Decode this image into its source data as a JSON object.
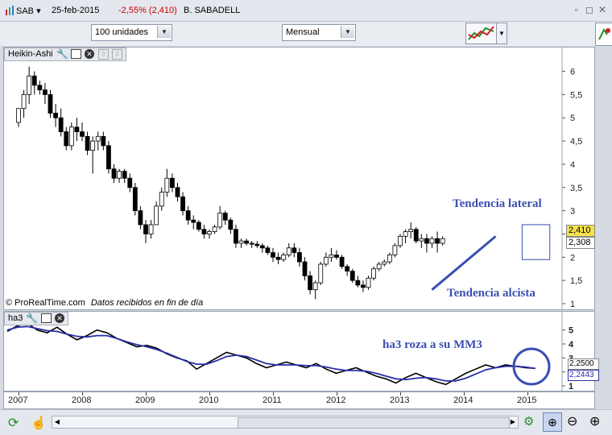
{
  "header": {
    "symbol": "SAB",
    "date": "25-feb-2015",
    "change": "-2,55% (2,410)",
    "instrument": "B. SABADELL",
    "change_color": "#cc0000"
  },
  "toolbar": {
    "units_value": "100 unidades",
    "period_value": "Mensual"
  },
  "price_panel": {
    "indicator_label": "Heikin-Ashi",
    "y_ticks": [
      "6",
      "5,5",
      "5",
      "4,5",
      "4",
      "3,5",
      "3",
      "2,5",
      "2",
      "1,5",
      "1"
    ],
    "last_price": "2,410",
    "ma_price": "2,308",
    "last_price_color": "#f6e24a",
    "footer_source": "© ProRealTime.com",
    "footer_note": "Datos recibidos en fin de día",
    "annotation_lateral": "Tendencia lateral",
    "annotation_alcista": "Tendencia alcista",
    "annotation_color": "#3a4fb0"
  },
  "osc_panel": {
    "indicator_label": "ha3",
    "y_ticks": [
      "5",
      "4",
      "3",
      "2",
      "1"
    ],
    "value_ha3": "2,2500",
    "value_mm3": "2,2443",
    "annotation": "ha3 roza a su MM3",
    "series_colors": {
      "ha3": "#000000",
      "mm3": "#2a2fa8"
    }
  },
  "x_axis": {
    "years": [
      "2007",
      "2008",
      "2009",
      "2010",
      "2011",
      "2012",
      "2013",
      "2014",
      "2015"
    ]
  },
  "chart_data": {
    "type": "candlestick",
    "xlabel": "",
    "ylabel": "",
    "ylim": [
      1,
      6.2
    ],
    "x_start": "2007-01",
    "frequency": "monthly",
    "candles": [
      [
        4.9,
        5.2,
        4.8,
        5.2
      ],
      [
        5.2,
        5.6,
        5.0,
        5.5
      ],
      [
        5.5,
        6.1,
        5.3,
        5.9
      ],
      [
        5.9,
        6.0,
        5.5,
        5.7
      ],
      [
        5.7,
        5.8,
        5.5,
        5.6
      ],
      [
        5.6,
        5.75,
        5.3,
        5.5
      ],
      [
        5.5,
        5.6,
        5.0,
        5.1
      ],
      [
        5.1,
        5.3,
        4.8,
        5.0
      ],
      [
        5.0,
        5.2,
        4.6,
        4.7
      ],
      [
        4.7,
        4.8,
        4.3,
        4.4
      ],
      [
        4.4,
        4.9,
        4.3,
        4.8
      ],
      [
        4.8,
        5.0,
        4.5,
        4.7
      ],
      [
        4.7,
        4.9,
        4.5,
        4.6
      ],
      [
        4.6,
        4.7,
        4.2,
        4.3
      ],
      [
        4.3,
        4.6,
        3.8,
        4.5
      ],
      [
        4.5,
        4.7,
        4.3,
        4.6
      ],
      [
        4.6,
        4.7,
        4.3,
        4.4
      ],
      [
        4.4,
        4.5,
        3.8,
        3.9
      ],
      [
        3.9,
        4.0,
        3.6,
        3.7
      ],
      [
        3.7,
        3.9,
        3.6,
        3.85
      ],
      [
        3.85,
        3.9,
        3.6,
        3.7
      ],
      [
        3.7,
        3.8,
        3.4,
        3.5
      ],
      [
        3.5,
        3.6,
        2.9,
        3.0
      ],
      [
        3.0,
        3.1,
        2.6,
        2.7
      ],
      [
        2.7,
        2.8,
        2.3,
        2.5
      ],
      [
        2.5,
        2.8,
        2.4,
        2.7
      ],
      [
        2.7,
        3.2,
        2.7,
        3.1
      ],
      [
        3.1,
        3.5,
        3.0,
        3.4
      ],
      [
        3.4,
        3.9,
        3.3,
        3.7
      ],
      [
        3.7,
        3.8,
        3.4,
        3.5
      ],
      [
        3.5,
        3.6,
        3.2,
        3.3
      ],
      [
        3.3,
        3.4,
        2.9,
        3.0
      ],
      [
        3.0,
        3.1,
        2.7,
        2.8
      ],
      [
        2.8,
        2.9,
        2.6,
        2.75
      ],
      [
        2.75,
        2.8,
        2.55,
        2.6
      ],
      [
        2.6,
        2.7,
        2.4,
        2.5
      ],
      [
        2.5,
        2.6,
        2.4,
        2.55
      ],
      [
        2.55,
        2.7,
        2.5,
        2.65
      ],
      [
        2.65,
        3.1,
        2.6,
        2.95
      ],
      [
        2.95,
        3.0,
        2.7,
        2.8
      ],
      [
        2.8,
        2.85,
        2.5,
        2.6
      ],
      [
        2.6,
        2.7,
        2.2,
        2.3
      ],
      [
        2.3,
        2.4,
        2.2,
        2.35
      ],
      [
        2.35,
        2.4,
        2.25,
        2.3
      ],
      [
        2.3,
        2.35,
        2.2,
        2.28
      ],
      [
        2.28,
        2.35,
        2.2,
        2.25
      ],
      [
        2.25,
        2.3,
        2.1,
        2.2
      ],
      [
        2.2,
        2.25,
        2.05,
        2.1
      ],
      [
        2.1,
        2.2,
        1.9,
        2.0
      ],
      [
        2.0,
        2.1,
        1.85,
        1.95
      ],
      [
        1.95,
        2.1,
        1.9,
        2.05
      ],
      [
        2.05,
        2.3,
        2.0,
        2.2
      ],
      [
        2.2,
        2.3,
        2.0,
        2.1
      ],
      [
        2.1,
        2.2,
        1.8,
        1.9
      ],
      [
        1.9,
        2.0,
        1.5,
        1.6
      ],
      [
        1.6,
        1.7,
        1.2,
        1.3
      ],
      [
        1.3,
        1.5,
        1.1,
        1.45
      ],
      [
        1.45,
        1.9,
        1.4,
        1.85
      ],
      [
        1.85,
        2.1,
        1.8,
        2.0
      ],
      [
        2.0,
        2.2,
        1.9,
        2.05
      ],
      [
        2.05,
        2.15,
        1.95,
        2.0
      ],
      [
        2.0,
        2.05,
        1.75,
        1.8
      ],
      [
        1.8,
        1.85,
        1.6,
        1.7
      ],
      [
        1.7,
        1.75,
        1.45,
        1.5
      ],
      [
        1.5,
        1.6,
        1.35,
        1.4
      ],
      [
        1.4,
        1.5,
        1.25,
        1.35
      ],
      [
        1.35,
        1.6,
        1.3,
        1.55
      ],
      [
        1.55,
        1.8,
        1.5,
        1.75
      ],
      [
        1.75,
        1.9,
        1.7,
        1.85
      ],
      [
        1.85,
        1.95,
        1.8,
        1.9
      ],
      [
        1.9,
        2.1,
        1.85,
        2.05
      ],
      [
        2.05,
        2.3,
        2.0,
        2.25
      ],
      [
        2.25,
        2.5,
        2.2,
        2.45
      ],
      [
        2.45,
        2.6,
        2.3,
        2.55
      ],
      [
        2.55,
        2.75,
        2.4,
        2.6
      ],
      [
        2.6,
        2.65,
        2.3,
        2.35
      ],
      [
        2.35,
        2.5,
        2.2,
        2.4
      ],
      [
        2.4,
        2.5,
        2.1,
        2.3
      ],
      [
        2.3,
        2.45,
        2.2,
        2.4
      ],
      [
        2.4,
        2.55,
        2.1,
        2.3
      ],
      [
        2.3,
        2.45,
        2.25,
        2.4
      ]
    ],
    "overlay_lines": [
      {
        "name": "Tendencia alcista",
        "points": [
          [
            "2013-07",
            1.3
          ],
          [
            "2014-07",
            2.45
          ]
        ]
      }
    ],
    "oscillator": {
      "ha3": [
        4.9,
        5.3,
        5.5,
        5.0,
        4.8,
        5.2,
        4.7,
        4.3,
        4.6,
        5.0,
        4.8,
        4.4,
        4.1,
        3.8,
        3.9,
        3.7,
        3.3,
        3.0,
        2.8,
        2.2,
        2.6,
        3.0,
        3.4,
        3.2,
        3.0,
        2.6,
        2.3,
        2.5,
        2.7,
        2.5,
        2.3,
        2.6,
        2.2,
        1.9,
        2.1,
        2.3,
        2.0,
        1.7,
        1.5,
        1.2,
        1.6,
        1.9,
        1.6,
        1.3,
        1.1,
        1.5,
        1.9,
        2.2,
        2.5,
        2.3,
        2.5,
        2.4,
        2.3,
        2.25
      ],
      "mm3": [
        5.0,
        5.2,
        5.25,
        5.1,
        4.95,
        4.9,
        4.7,
        4.55,
        4.5,
        4.6,
        4.6,
        4.4,
        4.15,
        3.95,
        3.8,
        3.6,
        3.35,
        3.05,
        2.75,
        2.55,
        2.55,
        2.8,
        3.1,
        3.2,
        3.1,
        2.85,
        2.6,
        2.5,
        2.5,
        2.5,
        2.45,
        2.45,
        2.35,
        2.2,
        2.1,
        2.1,
        2.05,
        1.9,
        1.7,
        1.5,
        1.45,
        1.55,
        1.6,
        1.5,
        1.35,
        1.35,
        1.55,
        1.85,
        2.15,
        2.3,
        2.4,
        2.4,
        2.35,
        2.2443
      ]
    }
  }
}
